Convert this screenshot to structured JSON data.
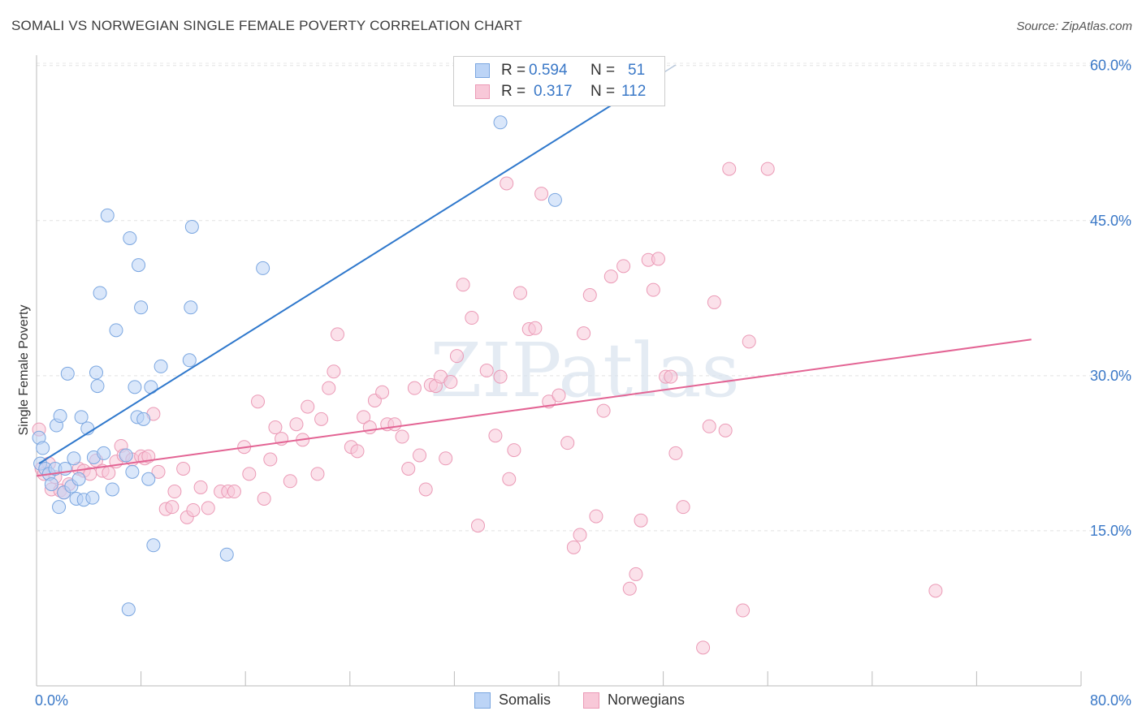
{
  "chart_data": {
    "type": "scatter",
    "title": "SOMALI VS NORWEGIAN SINGLE FEMALE POVERTY CORRELATION CHART",
    "source": "Source: ZipAtlas.com",
    "xlabel": "",
    "ylabel": "Single Female Poverty",
    "x_tick_labels": [
      "0.0%",
      "80.0%"
    ],
    "y_tick_labels": [
      "15.0%",
      "30.0%",
      "45.0%",
      "60.0%"
    ],
    "y_ticks": [
      15,
      30,
      45,
      60
    ],
    "xlim": [
      0,
      84
    ],
    "ylim": [
      0,
      61
    ],
    "grid": true,
    "legend_position": "top-center",
    "watermark": "ZIPatlas",
    "series": [
      {
        "name": "Somalis",
        "color": "#8ab6f0",
        "line_color": "#2f78cc",
        "R": "0.594",
        "N": "51",
        "trend": {
          "x0": 0.2,
          "y0": 21.5,
          "x1": 50.0,
          "y1": 59.0
        },
        "points": [
          [
            0.2,
            24
          ],
          [
            0.3,
            21.5
          ],
          [
            0.5,
            23
          ],
          [
            0.7,
            21
          ],
          [
            1.0,
            20.5
          ],
          [
            1.2,
            19.5
          ],
          [
            1.5,
            21
          ],
          [
            1.6,
            25.2
          ],
          [
            1.8,
            17.3
          ],
          [
            1.9,
            26.1
          ],
          [
            2.2,
            18.7
          ],
          [
            2.3,
            21
          ],
          [
            2.5,
            30.2
          ],
          [
            2.8,
            19.3
          ],
          [
            3.0,
            22
          ],
          [
            3.2,
            18.1
          ],
          [
            3.4,
            20
          ],
          [
            3.6,
            26
          ],
          [
            3.8,
            18
          ],
          [
            4.1,
            24.9
          ],
          [
            4.5,
            18.2
          ],
          [
            4.6,
            22.1
          ],
          [
            4.8,
            30.3
          ],
          [
            4.9,
            29
          ],
          [
            5.1,
            38
          ],
          [
            5.4,
            22.5
          ],
          [
            5.7,
            45.5
          ],
          [
            6.1,
            19
          ],
          [
            6.4,
            34.4
          ],
          [
            7.2,
            22.3
          ],
          [
            7.4,
            7.4
          ],
          [
            7.5,
            43.3
          ],
          [
            7.7,
            20.7
          ],
          [
            7.9,
            28.9
          ],
          [
            8.1,
            26
          ],
          [
            8.2,
            40.7
          ],
          [
            8.4,
            36.6
          ],
          [
            8.6,
            25.8
          ],
          [
            9.0,
            20
          ],
          [
            9.2,
            28.9
          ],
          [
            9.4,
            13.6
          ],
          [
            10.0,
            30.9
          ],
          [
            12.3,
            31.5
          ],
          [
            12.4,
            36.6
          ],
          [
            12.5,
            44.4
          ],
          [
            15.3,
            12.7
          ],
          [
            18.2,
            40.4
          ],
          [
            37.3,
            54.5
          ],
          [
            41.7,
            47
          ]
        ]
      },
      {
        "name": "Norwegians",
        "color": "#f4a8c0",
        "line_color": "#e36494",
        "R": "0.317",
        "N": "112",
        "trend": {
          "x0": 0.0,
          "y0": 20.3,
          "x1": 80.0,
          "y1": 33.5
        },
        "points": [
          [
            0.2,
            24.8
          ],
          [
            0.4,
            21
          ],
          [
            0.6,
            20.5
          ],
          [
            1.0,
            21.5
          ],
          [
            1.2,
            19
          ],
          [
            1.5,
            20.2
          ],
          [
            1.9,
            18.9
          ],
          [
            2.2,
            18.7
          ],
          [
            2.6,
            19.5
          ],
          [
            3.4,
            21
          ],
          [
            3.8,
            20.8
          ],
          [
            4.3,
            20.5
          ],
          [
            4.8,
            21.8
          ],
          [
            5.3,
            20.8
          ],
          [
            5.8,
            20.6
          ],
          [
            6.4,
            21.7
          ],
          [
            6.8,
            23.2
          ],
          [
            7.0,
            22.3
          ],
          [
            7.7,
            21.9
          ],
          [
            8.4,
            22.2
          ],
          [
            8.7,
            22
          ],
          [
            9.0,
            22.2
          ],
          [
            9.4,
            26.3
          ],
          [
            9.8,
            20.7
          ],
          [
            10.4,
            17.1
          ],
          [
            10.9,
            17.3
          ],
          [
            11.1,
            18.8
          ],
          [
            11.8,
            21
          ],
          [
            12.1,
            16.3
          ],
          [
            12.6,
            17
          ],
          [
            13.2,
            19.2
          ],
          [
            13.8,
            17.2
          ],
          [
            14.8,
            18.8
          ],
          [
            15.4,
            18.8
          ],
          [
            15.9,
            18.8
          ],
          [
            16.7,
            23.1
          ],
          [
            17.1,
            20.5
          ],
          [
            17.8,
            27.5
          ],
          [
            18.3,
            18.1
          ],
          [
            18.8,
            21.9
          ],
          [
            19.2,
            25
          ],
          [
            19.7,
            23.9
          ],
          [
            20.4,
            19.8
          ],
          [
            20.9,
            25.3
          ],
          [
            21.4,
            23.8
          ],
          [
            21.8,
            27
          ],
          [
            22.6,
            20.5
          ],
          [
            22.9,
            25.8
          ],
          [
            23.5,
            28.8
          ],
          [
            23.9,
            30.4
          ],
          [
            24.2,
            34
          ],
          [
            25.3,
            23.1
          ],
          [
            25.8,
            22.7
          ],
          [
            26.3,
            26
          ],
          [
            26.8,
            25
          ],
          [
            27.2,
            27.6
          ],
          [
            27.8,
            28.4
          ],
          [
            28.2,
            25.3
          ],
          [
            28.8,
            25.3
          ],
          [
            29.4,
            24.1
          ],
          [
            29.9,
            21
          ],
          [
            30.4,
            28.8
          ],
          [
            30.8,
            22.3
          ],
          [
            31.3,
            19
          ],
          [
            31.7,
            29.1
          ],
          [
            32.1,
            29
          ],
          [
            32.5,
            29.9
          ],
          [
            32.9,
            22
          ],
          [
            33.3,
            29.4
          ],
          [
            33.8,
            31.9
          ],
          [
            34.3,
            38.8
          ],
          [
            35.0,
            35.6
          ],
          [
            35.5,
            15.5
          ],
          [
            36.2,
            30.5
          ],
          [
            36.9,
            24.2
          ],
          [
            37.3,
            29.9
          ],
          [
            37.8,
            48.6
          ],
          [
            38.0,
            20
          ],
          [
            38.4,
            22.8
          ],
          [
            38.9,
            38
          ],
          [
            39.6,
            34.5
          ],
          [
            40.1,
            34.6
          ],
          [
            40.6,
            47.6
          ],
          [
            41.2,
            27.5
          ],
          [
            42.0,
            28.1
          ],
          [
            42.7,
            23.5
          ],
          [
            43.2,
            13.4
          ],
          [
            43.7,
            14.6
          ],
          [
            44.0,
            34.1
          ],
          [
            44.5,
            37.8
          ],
          [
            45.0,
            16.4
          ],
          [
            45.6,
            26.6
          ],
          [
            46.2,
            39.6
          ],
          [
            47.2,
            40.6
          ],
          [
            47.7,
            9.4
          ],
          [
            48.2,
            10.8
          ],
          [
            48.6,
            16
          ],
          [
            49.2,
            41.2
          ],
          [
            49.6,
            38.3
          ],
          [
            50.0,
            41.3
          ],
          [
            50.6,
            29.9
          ],
          [
            51.0,
            29.9
          ],
          [
            51.4,
            22.5
          ],
          [
            52.0,
            17.3
          ],
          [
            53.6,
            3.7
          ],
          [
            54.1,
            25.1
          ],
          [
            54.5,
            37.1
          ],
          [
            55.4,
            24.7
          ],
          [
            55.7,
            50
          ],
          [
            56.8,
            7.3
          ],
          [
            57.3,
            33.3
          ],
          [
            58.8,
            50
          ],
          [
            72.3,
            9.2
          ]
        ]
      }
    ]
  }
}
